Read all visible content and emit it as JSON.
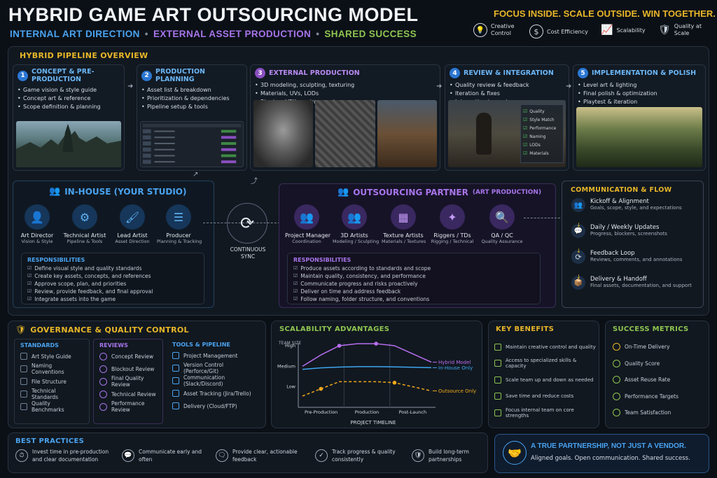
{
  "header": {
    "title": "HYBRID GAME ART OUTSOURCING MODEL",
    "sub1": "INTERNAL ART DIRECTION",
    "sub2": "EXTERNAL ASSET PRODUCTION",
    "sub3": "SHARED SUCCESS",
    "tagline": "FOCUS INSIDE. SCALE OUTSIDE. WIN TOGETHER.",
    "badges": [
      "Creative Control",
      "Cost Efficiency",
      "Scalability",
      "Quality at Scale"
    ]
  },
  "pipeline": {
    "title": "HYBRID PIPELINE OVERVIEW",
    "steps": [
      {
        "num": "1",
        "title": "CONCEPT & PRE-PRODUCTION",
        "items": [
          "Game vision & style guide",
          "Concept art & reference",
          "Scope definition & planning"
        ]
      },
      {
        "num": "2",
        "title": "PRODUCTION PLANNING",
        "items": [
          "Asset list & breakdown",
          "Prioritization & dependencies",
          "Pipeline setup & tools"
        ]
      },
      {
        "num": "3",
        "title": "EXTERNAL PRODUCTION",
        "items": [
          "3D modeling, sculpting, texturing",
          "Materials, UVs, LODs",
          "Rigging, VFX, environments"
        ]
      },
      {
        "num": "4",
        "title": "REVIEW & INTEGRATION",
        "items": [
          "Quality review & feedback",
          "Iteration & fixes",
          "Integration to engine"
        ]
      },
      {
        "num": "5",
        "title": "IMPLEMENTATION & POLISH",
        "items": [
          "Level art & lighting",
          "Final polish & optimization",
          "Playtest & iteration"
        ]
      }
    ],
    "review_checklist": [
      "Quality",
      "Style Match",
      "Performance",
      "Naming",
      "LODs",
      "Materials"
    ]
  },
  "inhouse": {
    "title": "IN-HOUSE (YOUR STUDIO)",
    "roles": [
      {
        "name": "Art Director",
        "sub": "Vision & Style"
      },
      {
        "name": "Technical Artist",
        "sub": "Pipeline & Tools"
      },
      {
        "name": "Lead Artist",
        "sub": "Asset Direction"
      },
      {
        "name": "Producer",
        "sub": "Planning & Tracking"
      }
    ],
    "resp_title": "RESPONSIBILITIES",
    "resp": [
      "Define visual style and quality standards",
      "Create key assets, concepts, and references",
      "Approve scope, plan, and priorities",
      "Review, provide feedback, and final approval",
      "Integrate assets into the game"
    ]
  },
  "sync": {
    "label1": "CONTINUOUS",
    "label2": "SYNC"
  },
  "partner": {
    "title": "OUTSOURCING PARTNER",
    "title_sub": "(ART PRODUCTION)",
    "roles": [
      {
        "name": "Project Manager",
        "sub": "Coordination"
      },
      {
        "name": "3D Artists",
        "sub": "Modeling / Sculpting"
      },
      {
        "name": "Texture Artists",
        "sub": "Materials / Textures"
      },
      {
        "name": "Riggers / TDs",
        "sub": "Rigging / Technical"
      },
      {
        "name": "QA / QC",
        "sub": "Quality Assurance"
      }
    ],
    "resp_title": "RESPONSIBILITIES",
    "resp": [
      "Produce assets according to standards and scope",
      "Maintain quality, consistency, and performance",
      "Communicate progress and risks proactively",
      "Deliver on time and address feedback",
      "Follow naming, folder structure, and conventions"
    ]
  },
  "comm": {
    "title": "COMMUNICATION & FLOW",
    "items": [
      {
        "title": "Kickoff & Alignment",
        "sub": "Goals, scope, style, and expectations"
      },
      {
        "title": "Daily / Weekly Updates",
        "sub": "Progress, blockers, screenshots"
      },
      {
        "title": "Feedback Loop",
        "sub": "Reviews, comments, and annotations"
      },
      {
        "title": "Delivery & Handoff",
        "sub": "Final assets, documentation, and support"
      }
    ]
  },
  "governance": {
    "title": "GOVERNANCE & QUALITY CONTROL",
    "standards_title": "STANDARDS",
    "standards": [
      "Art Style Guide",
      "Naming Conventions",
      "File Structure",
      "Technical Standards",
      "Quality Benchmarks"
    ],
    "reviews_title": "REVIEWS",
    "reviews": [
      "Concept Review",
      "Blockout Review",
      "Final Quality Review",
      "Technical Review",
      "Performance Review"
    ],
    "tools_title": "TOOLS & PIPELINE",
    "tools": [
      "Project Management",
      "Version Control (Perforce/Git)",
      "Communication (Slack/Discord)",
      "Asset Tracking (Jira/Trello)",
      "Delivery (Cloud/FTP)"
    ]
  },
  "scalability": {
    "title": "SCALABILITY ADVANTAGES"
  },
  "chart_data": {
    "type": "line",
    "title": "SCALABILITY ADVANTAGES",
    "ylabel": "TEAM SIZE",
    "xlabel": "PROJECT TIMELINE",
    "y_ticks": [
      "Low",
      "Medium",
      "High"
    ],
    "x_ticks": [
      "Pre-Production",
      "Production",
      "Post-Launch"
    ],
    "ylim": [
      0,
      3
    ],
    "series": [
      {
        "name": "Hybrid Model",
        "color": "#b86ef0",
        "dashed": false,
        "values": [
          2.0,
          2.55,
          3.0,
          3.1,
          3.1,
          3.0,
          2.6,
          2.2
        ]
      },
      {
        "name": "In-House Only",
        "color": "#3ea6f0",
        "dashed": false,
        "values": [
          1.85,
          1.92,
          1.96,
          1.98,
          1.98,
          1.97,
          1.95,
          1.93
        ]
      },
      {
        "name": "Outsource Only",
        "color": "#f0a81c",
        "dashed": true,
        "values": [
          0.55,
          0.9,
          1.25,
          1.25,
          1.25,
          1.2,
          1.0,
          0.8
        ]
      }
    ],
    "markers": [
      [
        2,
        0
      ],
      [
        4,
        0
      ],
      [
        1,
        2
      ],
      [
        5,
        2
      ]
    ]
  },
  "benefits": {
    "title": "KEY BENEFITS",
    "items": [
      "Maintain creative control and quality",
      "Access to specialized skills & capacity",
      "Scale team up and down as needed",
      "Save time and reduce costs",
      "Focus internal team on core strengths"
    ]
  },
  "metrics": {
    "title": "SUCCESS METRICS",
    "items": [
      "On-Time Delivery",
      "Quality Score",
      "Asset Reuse Rate",
      "Performance Targets",
      "Team Satisfaction"
    ]
  },
  "practices": {
    "title": "BEST PRACTICES",
    "items": [
      "Invest time in pre-production and clear documentation",
      "Communicate early and often",
      "Provide clear, actionable feedback",
      "Track progress & quality consistently",
      "Build long-term partnerships"
    ]
  },
  "partnership": {
    "title": "A TRUE PARTNERSHIP, NOT JUST A VENDOR.",
    "sub": "Aligned goals. Open communication. Shared success."
  },
  "colors": {
    "yellow": "#e8b628",
    "blue": "#4aa3f0",
    "purple": "#a774ea",
    "green": "#8ec450",
    "bg": "#0b1017"
  }
}
